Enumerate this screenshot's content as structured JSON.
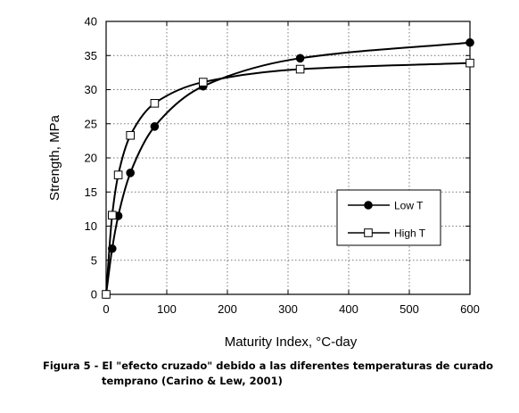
{
  "chart_data": {
    "type": "line",
    "title": "",
    "xlabel": "Maturity Index, °C-day",
    "ylabel": "Strength, MPa",
    "xlim": [
      0,
      600
    ],
    "ylim": [
      0,
      40
    ],
    "x_ticks": [
      0,
      100,
      200,
      300,
      400,
      500,
      600
    ],
    "y_ticks": [
      0,
      5,
      10,
      15,
      20,
      25,
      30,
      35,
      40
    ],
    "grid": true,
    "legend_position": "center-right",
    "series": [
      {
        "name": "Low T",
        "marker": "filled-circle",
        "color": "#000000",
        "x": [
          0,
          10,
          20,
          40,
          80,
          160,
          320,
          600
        ],
        "y": [
          0,
          6.7,
          11.5,
          17.8,
          24.6,
          30.5,
          34.6,
          36.9
        ]
      },
      {
        "name": "High T",
        "marker": "open-square",
        "color": "#000000",
        "x": [
          0,
          10,
          20,
          40,
          80,
          160,
          320,
          600
        ],
        "y": [
          0,
          11.6,
          17.5,
          23.3,
          28.0,
          31.1,
          33.0,
          33.9
        ]
      }
    ]
  },
  "caption": {
    "line1": "Figura 5 - El \"efecto cruzado\" debido a las diferentes temperaturas de curado",
    "line2": "temprano (Carino & Lew, 2001)"
  }
}
